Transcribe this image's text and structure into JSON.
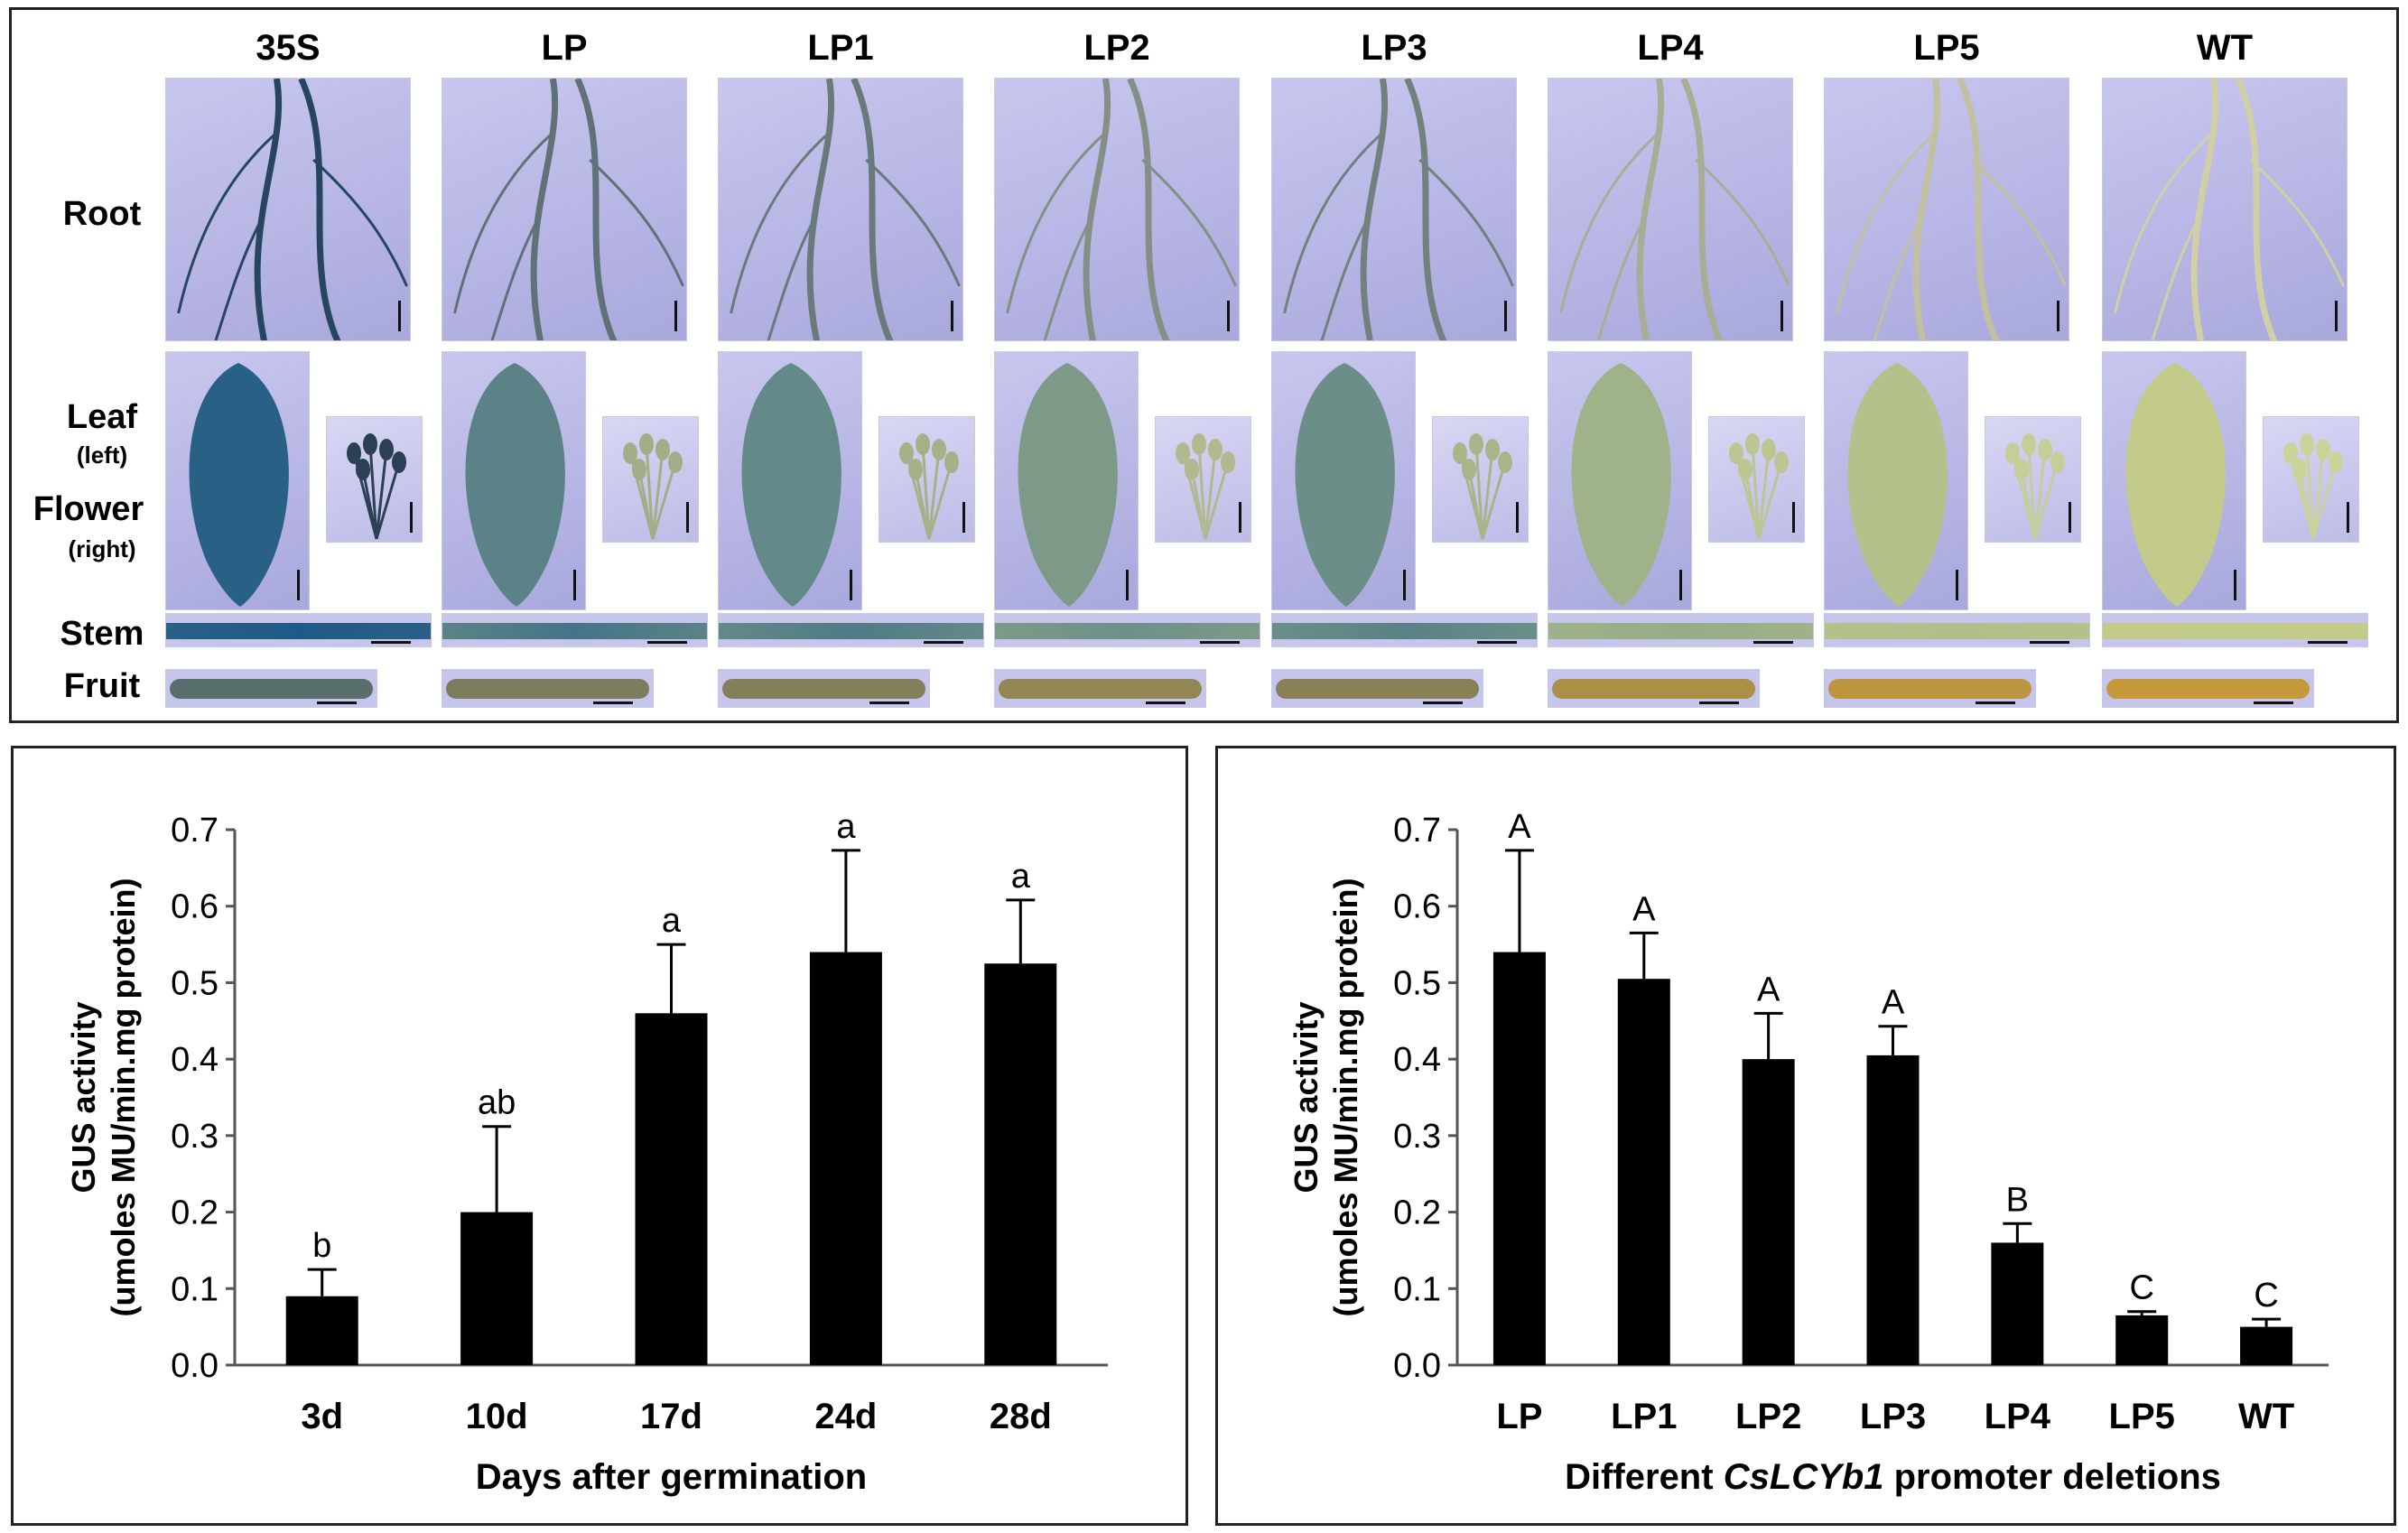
{
  "figure": {
    "column_headers": [
      "35S",
      "LP",
      "LP1",
      "LP2",
      "LP3",
      "LP4",
      "LP5",
      "WT"
    ],
    "row_labels": {
      "root": "Root",
      "leaf": "Leaf",
      "leaf_sub": "(left)",
      "flower": "Flower",
      "flower_sub": "(right)",
      "stem": "Stem",
      "fruit": "Fruit"
    },
    "stain_levels": [
      0.95,
      0.65,
      0.6,
      0.45,
      0.55,
      0.25,
      0.12,
      0.03
    ],
    "colors": {
      "stain": "#1f5a86",
      "tissue": "#c9cf8a",
      "background": "#b7b6e6"
    }
  },
  "chart_data": [
    {
      "type": "bar",
      "title": "",
      "categories": [
        "3d",
        "10d",
        "17d",
        "24d",
        "28d"
      ],
      "values": [
        0.09,
        0.2,
        0.46,
        0.54,
        0.525
      ],
      "error": [
        0.035,
        0.112,
        0.09,
        0.133,
        0.083
      ],
      "significance": [
        "b",
        "ab",
        "a",
        "a",
        "a"
      ],
      "xlabel": "Days after germination",
      "ylabel": "GUS activity",
      "ylabel2": "(umoles MU/min.mg protein)",
      "ylim": [
        0.0,
        0.7
      ],
      "yticks": [
        "0.0",
        "0.1",
        "0.2",
        "0.3",
        "0.4",
        "0.5",
        "0.6",
        "0.7"
      ],
      "bar_color": "#000000",
      "grid": false
    },
    {
      "type": "bar",
      "title": "",
      "categories": [
        "LP",
        "LP1",
        "LP2",
        "LP3",
        "LP4",
        "LP5",
        "WT"
      ],
      "values": [
        0.54,
        0.505,
        0.4,
        0.405,
        0.16,
        0.065,
        0.05
      ],
      "error": [
        0.133,
        0.06,
        0.06,
        0.038,
        0.025,
        0.005,
        0.01
      ],
      "significance": [
        "A",
        "A",
        "A",
        "A",
        "B",
        "C",
        "C"
      ],
      "xlabel_pre": "Different ",
      "xlabel_italic": "CsLCYb1",
      "xlabel_post": " promoter deletions",
      "ylabel": "GUS activity",
      "ylabel2": "(umoles MU/min.mg protein)",
      "ylim": [
        0.0,
        0.7
      ],
      "yticks": [
        "0.0",
        "0.1",
        "0.2",
        "0.3",
        "0.4",
        "0.5",
        "0.6",
        "0.7"
      ],
      "bar_color": "#000000",
      "grid": false
    }
  ]
}
